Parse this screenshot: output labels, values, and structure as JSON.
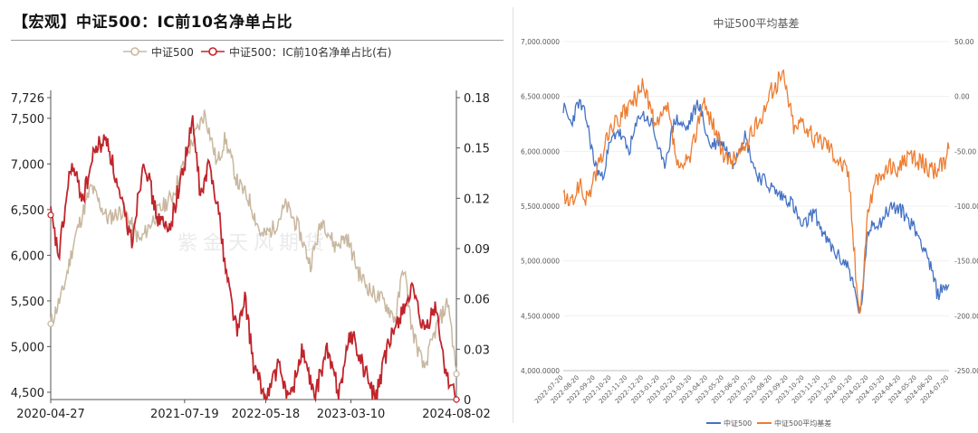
{
  "left_panel": {
    "title": "【宏观】中证500：IC前10名净单占比"
  },
  "chart_data": [
    {
      "type": "line",
      "title": "",
      "x_ticks": [
        "2020-04-27",
        "2021-07-19",
        "2022-05-18",
        "2023-03-10",
        "2024-08-02"
      ],
      "y_left_ticks": [
        "7,726",
        "7,500",
        "7,000",
        "6,500",
        "6,000",
        "5,500",
        "5,000",
        "4,500"
      ],
      "y_right_ticks": [
        "0.18",
        "0.15",
        "0.12",
        "0.09",
        "0.06",
        "0.03",
        "0"
      ],
      "ylim_left": [
        4420,
        7726
      ],
      "ylim_right": [
        0,
        0.18
      ],
      "legend_position": "top-center",
      "watermark": "紫金天风期货",
      "series": [
        {
          "name": "中证500",
          "axis": "left",
          "color": "#c8b8a0",
          "x": [
            0.0,
            0.03,
            0.06,
            0.1,
            0.14,
            0.18,
            0.22,
            0.26,
            0.3,
            0.34,
            0.38,
            0.41,
            0.43,
            0.46,
            0.49,
            0.52,
            0.55,
            0.58,
            0.61,
            0.64,
            0.67,
            0.7,
            0.73,
            0.76,
            0.79,
            0.82,
            0.85,
            0.87,
            0.89,
            0.92,
            0.95,
            0.98,
            1.0
          ],
          "values": [
            5250,
            5600,
            6200,
            6750,
            6400,
            6500,
            6150,
            6450,
            6650,
            7150,
            7560,
            7000,
            7280,
            6800,
            6600,
            6200,
            6300,
            6550,
            6300,
            5900,
            6400,
            6100,
            6200,
            5800,
            5600,
            5500,
            5300,
            5900,
            5200,
            4750,
            5200,
            5500,
            4700
          ]
        },
        {
          "name": "中证500：IC前10名净单占比(右)",
          "axis": "right",
          "color": "#c0252b",
          "x": [
            0.0,
            0.02,
            0.05,
            0.08,
            0.11,
            0.14,
            0.17,
            0.2,
            0.23,
            0.26,
            0.29,
            0.32,
            0.35,
            0.37,
            0.39,
            0.41,
            0.43,
            0.46,
            0.48,
            0.5,
            0.53,
            0.56,
            0.59,
            0.62,
            0.65,
            0.68,
            0.71,
            0.74,
            0.77,
            0.8,
            0.83,
            0.86,
            0.89,
            0.92,
            0.95,
            0.97,
            1.0
          ],
          "values": [
            0.11,
            0.085,
            0.14,
            0.12,
            0.15,
            0.155,
            0.12,
            0.095,
            0.145,
            0.11,
            0.1,
            0.13,
            0.165,
            0.12,
            0.14,
            0.12,
            0.08,
            0.04,
            0.06,
            0.02,
            0.0,
            0.02,
            0.0,
            0.03,
            0.0,
            0.03,
            0.005,
            0.04,
            0.02,
            0.0,
            0.03,
            0.05,
            0.065,
            0.04,
            0.055,
            0.02,
            0.0
          ]
        }
      ]
    },
    {
      "type": "line",
      "title": "中证500平均基差",
      "x_ticks": [
        "2022-07-20",
        "2022-08-20",
        "2022-09-20",
        "2022-10-20",
        "2022-11-20",
        "2022-12-20",
        "2023-01-20",
        "2023-02-20",
        "2023-03-20",
        "2023-04-20",
        "2023-05-20",
        "2023-06-20",
        "2023-07-20",
        "2023-08-20",
        "2023-09-20",
        "2023-10-20",
        "2023-11-20",
        "2023-12-20",
        "2024-01-20",
        "2024-02-20",
        "2024-03-20",
        "2024-04-20",
        "2024-05-20",
        "2024-06-20",
        "2024-07-20"
      ],
      "y_left_ticks": [
        "7,000.0000",
        "6,500.0000",
        "6,000.0000",
        "5,500.0000",
        "5,000.0000",
        "4,500.0000",
        "4,000.0000"
      ],
      "y_right_ticks": [
        "50.00",
        "0.00",
        "-50.00",
        "-100.00",
        "-150.00",
        "-200.00",
        "-250.00"
      ],
      "ylim_left": [
        4000,
        7000
      ],
      "ylim_right": [
        -250,
        50
      ],
      "legend_position": "bottom-center",
      "series": [
        {
          "name": "中证500",
          "axis": "left",
          "color": "#4472c4",
          "x": [
            0.0,
            0.02,
            0.04,
            0.06,
            0.08,
            0.1,
            0.12,
            0.14,
            0.17,
            0.2,
            0.23,
            0.26,
            0.29,
            0.32,
            0.35,
            0.38,
            0.41,
            0.44,
            0.47,
            0.5,
            0.53,
            0.56,
            0.59,
            0.62,
            0.65,
            0.68,
            0.71,
            0.74,
            0.77,
            0.79,
            0.8,
            0.82,
            0.85,
            0.88,
            0.91,
            0.94,
            0.97,
            1.0
          ],
          "values": [
            6400,
            6250,
            6450,
            6300,
            5900,
            5750,
            6050,
            6200,
            6000,
            6350,
            6250,
            5850,
            6300,
            6200,
            6450,
            6050,
            6100,
            5900,
            6150,
            5800,
            5700,
            5600,
            5550,
            5300,
            5450,
            5200,
            5050,
            4950,
            4500,
            5250,
            5350,
            5350,
            5500,
            5450,
            5300,
            5100,
            4700,
            4800
          ]
        },
        {
          "name": "中证500平均基差",
          "axis": "right",
          "color": "#ed7d31",
          "x": [
            0.0,
            0.02,
            0.04,
            0.06,
            0.08,
            0.1,
            0.12,
            0.15,
            0.18,
            0.21,
            0.24,
            0.27,
            0.3,
            0.33,
            0.36,
            0.39,
            0.42,
            0.45,
            0.48,
            0.51,
            0.54,
            0.57,
            0.6,
            0.62,
            0.65,
            0.68,
            0.71,
            0.74,
            0.76,
            0.77,
            0.79,
            0.81,
            0.84,
            0.87,
            0.9,
            0.93,
            0.96,
            0.99,
            1.0
          ],
          "values": [
            -90,
            -100,
            -80,
            -95,
            -75,
            -55,
            -30,
            -20,
            -5,
            10,
            -30,
            -10,
            -70,
            -55,
            -5,
            -25,
            -60,
            -55,
            -40,
            -20,
            5,
            20,
            -30,
            -20,
            -40,
            -40,
            -55,
            -70,
            -170,
            -200,
            -100,
            -80,
            -65,
            -65,
            -55,
            -60,
            -70,
            -60,
            -40
          ]
        }
      ]
    }
  ]
}
